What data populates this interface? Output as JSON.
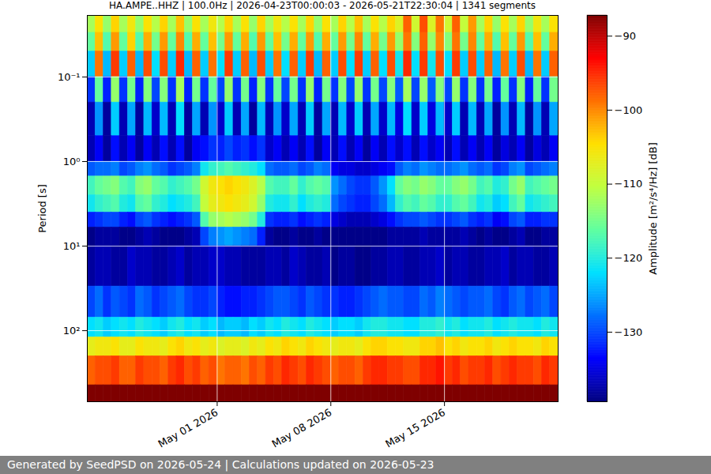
{
  "chart_data": {
    "type": "heatmap",
    "title": "HA.AMPE..HHZ | 100.0Hz | 2026-04-23T00:00:03 - 2026-05-21T22:30:04 | 1341 segments",
    "caption": "Generated by SeedPSD on 2026-05-24 | Calculations updated on 2026-05-23",
    "ylabel": "Period [s]",
    "log": "y",
    "grid": true,
    "xlim": [
      "2026-04-23T00:00Z",
      "2026-05-22T00:00Z"
    ],
    "xticks": [
      {
        "value": "2026-05-01T00:00Z",
        "label": "May 01 2026"
      },
      {
        "value": "2026-05-08T00:00Z",
        "label": "May 08 2026"
      },
      {
        "value": "2026-05-15T00:00Z",
        "label": "May 15 2026"
      }
    ],
    "ylim": [
      0.0187,
      692
    ],
    "yticks": [
      {
        "value": 0.1,
        "label": "10⁻¹"
      },
      {
        "value": 1,
        "label": "10⁰"
      },
      {
        "value": 10,
        "label": "10¹"
      },
      {
        "value": 100,
        "label": "10²"
      }
    ],
    "colorbar": {
      "label": "Amplitude [m²/s⁴/Hz] [dB]",
      "lim": [
        -139.4,
        -87.2
      ],
      "ticks": [
        {
          "value": -130,
          "label": "−130"
        },
        {
          "value": -120,
          "label": "−120"
        },
        {
          "value": -110,
          "label": "−110"
        },
        {
          "value": -100,
          "label": "−100"
        },
        {
          "value": -90,
          "label": "−90"
        }
      ]
    },
    "x_edges": [
      "2026-04-23T00:00Z",
      "2026-04-23T12:00Z",
      "2026-04-24T00:00Z",
      "2026-04-24T12:00Z",
      "2026-04-25T00:00Z",
      "2026-04-25T12:00Z",
      "2026-04-26T00:00Z",
      "2026-04-26T12:00Z",
      "2026-04-27T00:00Z",
      "2026-04-27T12:00Z",
      "2026-04-28T00:00Z",
      "2026-04-28T12:00Z",
      "2026-04-29T00:00Z",
      "2026-04-29T12:00Z",
      "2026-04-30T00:00Z",
      "2026-04-30T12:00Z",
      "2026-05-01T00:00Z",
      "2026-05-01T12:00Z",
      "2026-05-02T00:00Z",
      "2026-05-02T12:00Z",
      "2026-05-03T00:00Z",
      "2026-05-03T12:00Z",
      "2026-05-04T00:00Z",
      "2026-05-04T12:00Z",
      "2026-05-05T00:00Z",
      "2026-05-05T12:00Z",
      "2026-05-06T00:00Z",
      "2026-05-06T12:00Z",
      "2026-05-07T00:00Z",
      "2026-05-07T12:00Z",
      "2026-05-08T00:00Z",
      "2026-05-08T12:00Z",
      "2026-05-09T00:00Z",
      "2026-05-09T12:00Z",
      "2026-05-10T00:00Z",
      "2026-05-10T12:00Z",
      "2026-05-11T00:00Z",
      "2026-05-11T12:00Z",
      "2026-05-12T00:00Z",
      "2026-05-12T12:00Z",
      "2026-05-13T00:00Z",
      "2026-05-13T12:00Z",
      "2026-05-14T00:00Z",
      "2026-05-14T12:00Z",
      "2026-05-15T00:00Z",
      "2026-05-15T12:00Z",
      "2026-05-16T00:00Z",
      "2026-05-16T12:00Z",
      "2026-05-17T00:00Z",
      "2026-05-17T12:00Z",
      "2026-05-18T00:00Z",
      "2026-05-18T12:00Z",
      "2026-05-19T00:00Z",
      "2026-05-19T12:00Z",
      "2026-05-20T00:00Z",
      "2026-05-20T12:00Z",
      "2026-05-21T00:00Z",
      "2026-05-21T12:00Z",
      "2026-05-22T00:00Z"
    ],
    "y_edges": [
      0.0187,
      0.03,
      0.05,
      0.1,
      0.2,
      0.5,
      1,
      1.5,
      2.5,
      4,
      6,
      10,
      30,
      70,
      120,
      200,
      441,
      692
    ],
    "values": [
      [
        -112,
        -105,
        -113,
        -104,
        -112,
        -106,
        -113,
        -105,
        -111,
        -104,
        -112,
        -103,
        -113,
        -105,
        -112,
        -106,
        -111,
        -104,
        -112,
        -105,
        -113,
        -104,
        -112,
        -106,
        -111,
        -105,
        -112,
        -104,
        -113,
        -105,
        -112,
        -104,
        -111,
        -103,
        -112,
        -105,
        -111,
        -104,
        -108,
        -98,
        -109,
        -97,
        -108,
        -99,
        -109,
        -98,
        -110,
        -101,
        -112,
        -104,
        -113,
        -105,
        -112,
        -104,
        -113,
        -106,
        -112,
        -105
      ],
      [
        -116,
        -103,
        -117,
        -101,
        -116,
        -104,
        -117,
        -102,
        -115,
        -101,
        -116,
        -100,
        -117,
        -102,
        -116,
        -103,
        -115,
        -101,
        -116,
        -102,
        -117,
        -101,
        -116,
        -103,
        -115,
        -102,
        -116,
        -101,
        -117,
        -102,
        -116,
        -101,
        -115,
        -100,
        -116,
        -102,
        -115,
        -101,
        -113,
        -99,
        -114,
        -98,
        -113,
        -100,
        -114,
        -99,
        -115,
        -100,
        -116,
        -102,
        -117,
        -103,
        -116,
        -101,
        -117,
        -103,
        -116,
        -102
      ],
      [
        -123,
        -99,
        -124,
        -96,
        -123,
        -98,
        -124,
        -97,
        -122,
        -97,
        -123,
        -95,
        -124,
        -98,
        -123,
        -99,
        -122,
        -96,
        -123,
        -98,
        -124,
        -97,
        -123,
        -99,
        -122,
        -98,
        -123,
        -96,
        -124,
        -98,
        -123,
        -97,
        -122,
        -96,
        -123,
        -98,
        -122,
        -97,
        -121,
        -95,
        -122,
        -96,
        -121,
        -97,
        -122,
        -96,
        -123,
        -97,
        -123,
        -98,
        -124,
        -99,
        -123,
        -97,
        -124,
        -99,
        -123,
        -98
      ],
      [
        -131,
        -116,
        -132,
        -113,
        -131,
        -115,
        -132,
        -114,
        -130,
        -114,
        -131,
        -112,
        -132,
        -115,
        -131,
        -116,
        -130,
        -113,
        -131,
        -115,
        -132,
        -114,
        -131,
        -116,
        -130,
        -115,
        -131,
        -113,
        -132,
        -115,
        -131,
        -114,
        -130,
        -113,
        -131,
        -115,
        -130,
        -114,
        -129,
        -112,
        -130,
        -113,
        -129,
        -114,
        -130,
        -113,
        -131,
        -114,
        -131,
        -115,
        -132,
        -116,
        -131,
        -114,
        -132,
        -116,
        -131,
        -115
      ],
      [
        -137,
        -126,
        -138,
        -123,
        -137,
        -125,
        -138,
        -124,
        -136,
        -124,
        -137,
        -122,
        -138,
        -125,
        -137,
        -126,
        -136,
        -123,
        -137,
        -125,
        -138,
        -124,
        -137,
        -126,
        -136,
        -125,
        -137,
        -123,
        -138,
        -125,
        -137,
        -124,
        -136,
        -123,
        -137,
        -125,
        -136,
        -124,
        -135,
        -122,
        -136,
        -123,
        -135,
        -124,
        -136,
        -123,
        -137,
        -124,
        -137,
        -125,
        -138,
        -126,
        -137,
        -124,
        -138,
        -126,
        -137,
        -125
      ],
      [
        -137,
        -134,
        -138,
        -133,
        -137,
        -134,
        -138,
        -134,
        -137,
        -133,
        -137,
        -133,
        -138,
        -134,
        -133,
        -131,
        -132,
        -130,
        -132,
        -131,
        -133,
        -131,
        -136,
        -134,
        -137,
        -134,
        -137,
        -133,
        -138,
        -134,
        -137,
        -133,
        -137,
        -134,
        -138,
        -134,
        -137,
        -133,
        -136,
        -133,
        -137,
        -133,
        -136,
        -134,
        -137,
        -133,
        -137,
        -134,
        -137,
        -134,
        -138,
        -135,
        -137,
        -134,
        -138,
        -135,
        -137,
        -134
      ],
      [
        -129,
        -128,
        -128,
        -127,
        -130,
        -129,
        -127,
        -126,
        -128,
        -129,
        -131,
        -130,
        -129,
        -127,
        -121,
        -119,
        -118,
        -117,
        -118,
        -119,
        -120,
        -122,
        -128,
        -129,
        -129,
        -128,
        -130,
        -129,
        -127,
        -128,
        -134,
        -135,
        -135,
        -136,
        -136,
        -135,
        -134,
        -133,
        -129,
        -127,
        -128,
        -126,
        -127,
        -128,
        -128,
        -127,
        -126,
        -128,
        -129,
        -128,
        -131,
        -130,
        -127,
        -126,
        -130,
        -129,
        -128,
        -127
      ],
      [
        -118,
        -116,
        -115,
        -114,
        -117,
        -118,
        -114,
        -113,
        -116,
        -117,
        -119,
        -118,
        -117,
        -115,
        -109,
        -106,
        -105,
        -104,
        -105,
        -106,
        -108,
        -111,
        -117,
        -118,
        -118,
        -116,
        -119,
        -117,
        -116,
        -117,
        -126,
        -128,
        -130,
        -131,
        -131,
        -129,
        -126,
        -122,
        -116,
        -114,
        -115,
        -113,
        -114,
        -116,
        -116,
        -114,
        -113,
        -115,
        -118,
        -117,
        -120,
        -119,
        -115,
        -113,
        -118,
        -117,
        -116,
        -115
      ],
      [
        -121,
        -119,
        -118,
        -117,
        -120,
        -121,
        -117,
        -116,
        -119,
        -120,
        -122,
        -121,
        -120,
        -118,
        -110,
        -107,
        -106,
        -105,
        -106,
        -107,
        -109,
        -113,
        -120,
        -121,
        -121,
        -119,
        -122,
        -120,
        -119,
        -120,
        -128,
        -130,
        -131,
        -132,
        -132,
        -130,
        -128,
        -124,
        -119,
        -117,
        -118,
        -116,
        -117,
        -119,
        -119,
        -117,
        -116,
        -118,
        -121,
        -120,
        -123,
        -122,
        -118,
        -116,
        -121,
        -120,
        -119,
        -118
      ],
      [
        -132,
        -131,
        -130,
        -130,
        -132,
        -133,
        -130,
        -129,
        -131,
        -132,
        -133,
        -132,
        -131,
        -129,
        -117,
        -113,
        -112,
        -111,
        -112,
        -113,
        -115,
        -120,
        -131,
        -132,
        -132,
        -131,
        -133,
        -132,
        -131,
        -132,
        -135,
        -136,
        -137,
        -137,
        -137,
        -136,
        -135,
        -133,
        -131,
        -130,
        -130,
        -129,
        -130,
        -131,
        -131,
        -130,
        -129,
        -131,
        -132,
        -131,
        -134,
        -133,
        -130,
        -129,
        -132,
        -132,
        -131,
        -131
      ],
      [
        -139,
        -138,
        -138,
        -138,
        -139,
        -139,
        -138,
        -137,
        -138,
        -139,
        -139,
        -139,
        -138,
        -137,
        -130,
        -127,
        -126,
        -125,
        -126,
        -127,
        -128,
        -132,
        -138,
        -139,
        -139,
        -138,
        -139,
        -139,
        -138,
        -139,
        -139,
        -139,
        -139,
        -139,
        -139,
        -139,
        -139,
        -138,
        -138,
        -138,
        -138,
        -137,
        -138,
        -138,
        -138,
        -138,
        -137,
        -138,
        -139,
        -138,
        -139,
        -139,
        -138,
        -137,
        -139,
        -139,
        -138,
        -138
      ],
      [
        -138,
        -137,
        -137,
        -138,
        -138,
        -136,
        -137,
        -137,
        -138,
        -138,
        -137,
        -136,
        -138,
        -137,
        -137,
        -136,
        -136,
        -137,
        -137,
        -138,
        -138,
        -138,
        -137,
        -137,
        -138,
        -136,
        -137,
        -138,
        -138,
        -137,
        -139,
        -138,
        -138,
        -139,
        -139,
        -138,
        -138,
        -137,
        -137,
        -138,
        -138,
        -137,
        -137,
        -136,
        -138,
        -137,
        -137,
        -138,
        -138,
        -137,
        -137,
        -136,
        -138,
        -137,
        -137,
        -138,
        -138,
        -137
      ],
      [
        -130,
        -128,
        -131,
        -129,
        -130,
        -131,
        -128,
        -129,
        -131,
        -130,
        -129,
        -128,
        -130,
        -131,
        -131,
        -130,
        -132,
        -133,
        -133,
        -132,
        -132,
        -131,
        -130,
        -129,
        -129,
        -130,
        -131,
        -129,
        -130,
        -131,
        -131,
        -132,
        -132,
        -131,
        -130,
        -129,
        -128,
        -129,
        -129,
        -130,
        -130,
        -128,
        -129,
        -127,
        -128,
        -129,
        -130,
        -129,
        -129,
        -128,
        -130,
        -131,
        -129,
        -128,
        -130,
        -129,
        -128,
        -130
      ],
      [
        -122,
        -121,
        -123,
        -122,
        -121,
        -122,
        -120,
        -121,
        -122,
        -123,
        -121,
        -120,
        -122,
        -121,
        -123,
        -122,
        -124,
        -123,
        -123,
        -124,
        -122,
        -123,
        -121,
        -122,
        -120,
        -121,
        -122,
        -120,
        -121,
        -122,
        -123,
        -122,
        -122,
        -123,
        -121,
        -120,
        -120,
        -121,
        -121,
        -122,
        -122,
        -120,
        -120,
        -119,
        -121,
        -120,
        -122,
        -121,
        -121,
        -120,
        -122,
        -121,
        -120,
        -121,
        -121,
        -122,
        -120,
        -121
      ],
      [
        -107,
        -106,
        -106,
        -105,
        -107,
        -107,
        -105,
        -106,
        -106,
        -107,
        -105,
        -104,
        -106,
        -105,
        -107,
        -106,
        -108,
        -107,
        -107,
        -108,
        -106,
        -107,
        -105,
        -106,
        -104,
        -105,
        -106,
        -104,
        -105,
        -106,
        -107,
        -106,
        -106,
        -107,
        -105,
        -104,
        -104,
        -105,
        -105,
        -106,
        -106,
        -104,
        -104,
        -103,
        -105,
        -104,
        -106,
        -105,
        -105,
        -104,
        -106,
        -105,
        -104,
        -105,
        -105,
        -106,
        -104,
        -105
      ],
      [
        -98,
        -97,
        -97,
        -96,
        -98,
        -98,
        -96,
        -97,
        -97,
        -98,
        -96,
        -95,
        -97,
        -96,
        -98,
        -97,
        -99,
        -98,
        -98,
        -99,
        -97,
        -98,
        -96,
        -97,
        -95,
        -96,
        -97,
        -95,
        -96,
        -97,
        -98,
        -97,
        -97,
        -98,
        -96,
        -95,
        -95,
        -96,
        -96,
        -97,
        -97,
        -95,
        -95,
        -94,
        -96,
        -95,
        -97,
        -96,
        -96,
        -95,
        -97,
        -96,
        -95,
        -96,
        -96,
        -97,
        -95,
        -96
      ],
      [
        -86,
        -86,
        -86,
        -86,
        -86,
        -86,
        -86,
        -86,
        -86,
        -86,
        -86,
        -86,
        -86,
        -86,
        -86,
        -86,
        -86,
        -86,
        -86,
        -86,
        -86,
        -86,
        -86,
        -86,
        -86,
        -86,
        -86,
        -86,
        -86,
        -86,
        -86,
        -86,
        -86,
        -86,
        -86,
        -86,
        -86,
        -86,
        -86,
        -86,
        -86,
        -86,
        -86,
        -86,
        -86,
        -86,
        -86,
        -86,
        -86,
        -86,
        -86,
        -86,
        -86,
        -86,
        -86,
        -86,
        -86,
        -86
      ]
    ]
  }
}
